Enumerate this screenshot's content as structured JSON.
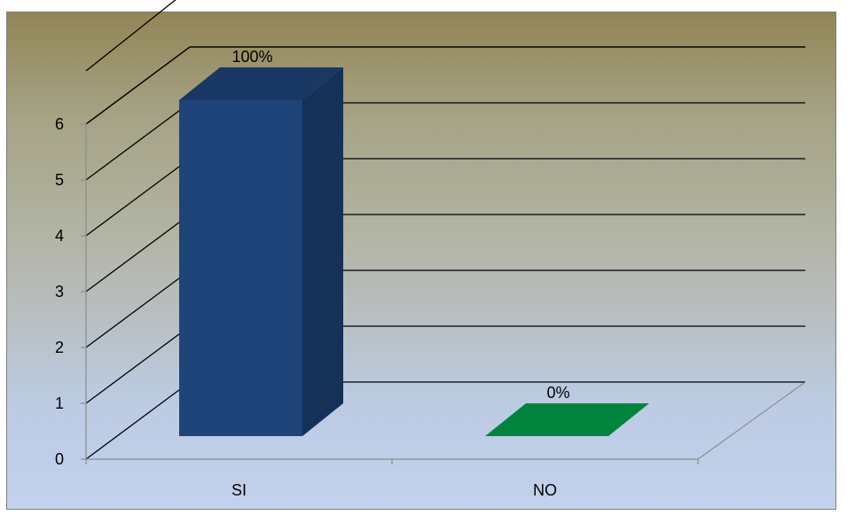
{
  "chart_data": {
    "type": "bar",
    "style": "3d-column",
    "categories": [
      "SI",
      "NO"
    ],
    "values": [
      6,
      0
    ],
    "data_labels": [
      "100%",
      "0%"
    ],
    "colors": [
      "#1f4479",
      "#00843d"
    ],
    "yticks": [
      "0",
      "1",
      "2",
      "3",
      "4",
      "5",
      "6"
    ],
    "ylim": [
      0,
      6
    ],
    "grid": true,
    "title": "",
    "xlabel": "",
    "ylabel": ""
  }
}
